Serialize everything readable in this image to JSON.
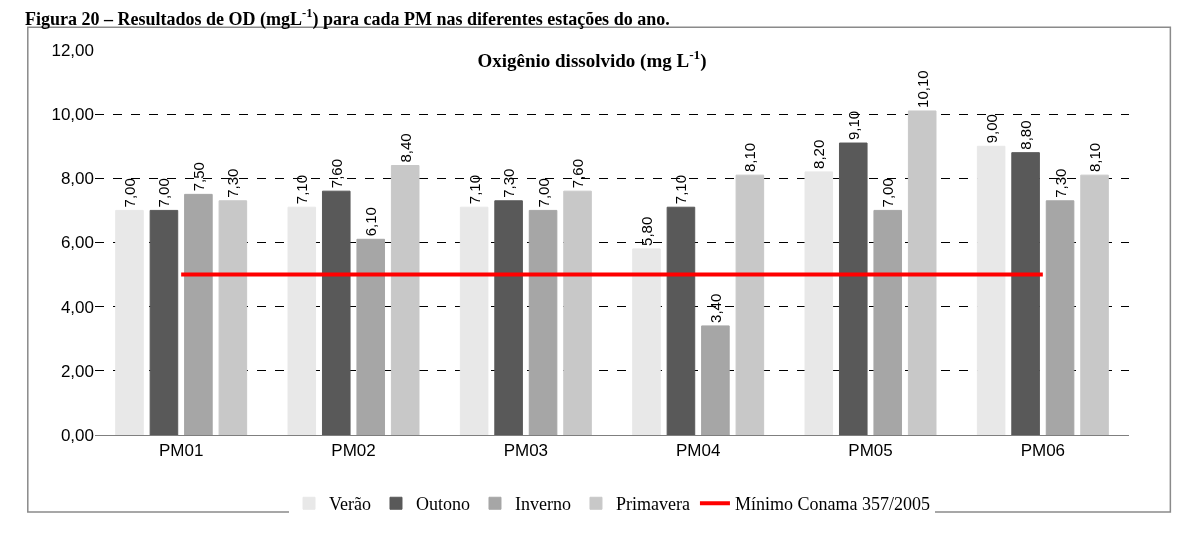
{
  "chart_data": {
    "type": "bar",
    "title": "Oxigênio dissolvido (mg L$^{-1}$)",
    "annotations": [
      "Figura 20 – Resultados de OD (mgL$^{-1}$) para cada PM nas diferentes estações do ano."
    ],
    "categories": [
      "PM01",
      "PM02",
      "PM03",
      "PM04",
      "PM05",
      "PM06"
    ],
    "series": [
      {
        "name": "Verão",
        "color": "#e8e8e8",
        "values": [
          7.0,
          7.1,
          7.1,
          5.8,
          8.2,
          9.0
        ],
        "value_labels": [
          "7,00",
          "7,10",
          "7,10",
          "5,80",
          "8,20",
          "9,00"
        ]
      },
      {
        "name": "Outono",
        "color": "#595959",
        "values": [
          7.0,
          7.6,
          7.3,
          7.1,
          9.1,
          8.8
        ],
        "value_labels": [
          "7,00",
          "7,60",
          "7,30",
          "7,10",
          "9,10",
          "8,80"
        ]
      },
      {
        "name": "Inverno",
        "color": "#a6a6a6",
        "values": [
          7.5,
          6.1,
          7.0,
          3.4,
          7.0,
          7.3
        ],
        "value_labels": [
          "7,50",
          "6,10",
          "7,00",
          "3,40",
          "7,00",
          "7,30"
        ]
      },
      {
        "name": "Primavera",
        "color": "#c8c8c8",
        "values": [
          7.3,
          8.4,
          7.6,
          8.1,
          10.1,
          8.1
        ],
        "value_labels": [
          "7,30",
          "8,40",
          "7,60",
          "8,10",
          "10,10",
          "8,10"
        ]
      }
    ],
    "ref_lines": [
      {
        "axis": "y",
        "value": 5.0,
        "label": "Mínimo Conama 357/2005",
        "color": "#ff0000",
        "line_style": "solid"
      }
    ],
    "ylim": [
      0,
      12
    ],
    "yticks": [
      {
        "value": 0,
        "label": "0,00"
      },
      {
        "value": 2,
        "label": "2,00"
      },
      {
        "value": 4,
        "label": "4,00"
      },
      {
        "value": 6,
        "label": "6,00"
      },
      {
        "value": 8,
        "label": "8,00"
      },
      {
        "value": 10,
        "label": "10,00"
      },
      {
        "value": 12,
        "label": "12,00"
      }
    ],
    "grid": "y",
    "legend": "bottom"
  }
}
